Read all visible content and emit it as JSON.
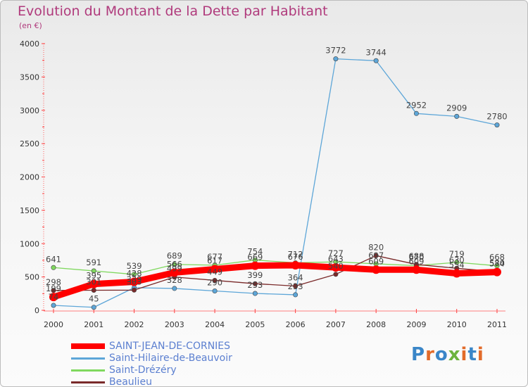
{
  "header": {
    "title": "Evolution du Montant de la Dette par Habitant",
    "subtitle": "(en €)"
  },
  "logo": {
    "text": "Proxiti",
    "colors": [
      "#3a86c8",
      "#e26b2a",
      "#3a86c8",
      "#6cb33e",
      "#e26b2a",
      "#3a86c8",
      "#e26b2a"
    ]
  },
  "chart_data": {
    "type": "line",
    "title": "Evolution du Montant de la Dette par Habitant",
    "subtitle": "(en €)",
    "xlabel": "",
    "ylabel": "",
    "x": [
      "2000",
      "2001",
      "2002",
      "2003",
      "2004",
      "2005",
      "2006",
      "2007",
      "2008",
      "2009",
      "2010",
      "2011"
    ],
    "ylim": [
      0,
      4000
    ],
    "yticks": [
      "0",
      "500",
      "1000",
      "1500",
      "2000",
      "2500",
      "3000",
      "3500",
      "4000"
    ],
    "grid": false,
    "legend_position": "bottom-left",
    "series": [
      {
        "name": "SAINT-JEAN-DE-CORNIES",
        "color": "#ff0000",
        "values": [
          199,
          395,
          428,
          566,
          617,
          669,
          676,
          643,
          609,
          609,
          554,
          574
        ],
        "labels": [
          "199",
          "395",
          "428",
          "566",
          "617",
          "669",
          "676",
          "643",
          "609",
          "609",
          "554",
          "574"
        ]
      },
      {
        "name": "Saint-Hilaire-de-Beauvoir",
        "color": "#5da6d8",
        "values": [
          74,
          45,
          339,
          328,
          290,
          253,
          233,
          3772,
          3744,
          2952,
          2909,
          2780
        ],
        "labels": [
          "74",
          "45",
          "339",
          "328",
          "290",
          "253",
          "233",
          "3772",
          "3744",
          "2952",
          "2909",
          "2780"
        ]
      },
      {
        "name": "Saint-Drézéry",
        "color": "#7fd85e",
        "values": [
          641,
          591,
          539,
          689,
          677,
          754,
          712,
          727,
          697,
          670,
          719,
          668
        ],
        "labels": [
          "641",
          "591",
          "539",
          "689",
          "677",
          "754",
          "712",
          "727",
          "697",
          "670",
          "719",
          "668"
        ]
      },
      {
        "name": "Beaulieu",
        "color": "#7a2a2a",
        "values": [
          298,
          301,
          303,
          499,
          449,
          399,
          364,
          540,
          820,
          688,
          630,
          580
        ],
        "labels": [
          "298",
          "301",
          "303",
          "499",
          "449",
          "399",
          "364",
          "540",
          "820",
          "688",
          "630",
          "580"
        ]
      }
    ]
  }
}
